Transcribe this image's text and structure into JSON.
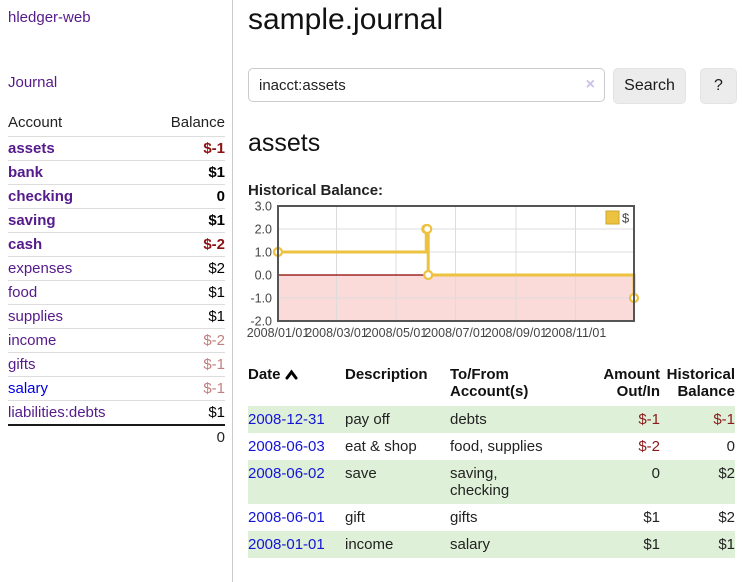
{
  "app": {
    "title": "hledger-web"
  },
  "sidebar": {
    "journal_link": "Journal",
    "table_headers": {
      "account": "Account",
      "balance": "Balance"
    },
    "accounts": [
      {
        "name": "assets",
        "indent": 1,
        "balance": "$-1",
        "bold": true,
        "neg": "strong"
      },
      {
        "name": "bank",
        "indent": 2,
        "balance": "$1",
        "bold": true
      },
      {
        "name": "checking",
        "indent": 3,
        "balance": "0",
        "bold": true
      },
      {
        "name": "saving",
        "indent": 3,
        "balance": "$1",
        "bold": true
      },
      {
        "name": "cash",
        "indent": 2,
        "balance": "$-2",
        "bold": true,
        "neg": "strong"
      },
      {
        "name": "expenses",
        "indent": 1,
        "balance": "$2"
      },
      {
        "name": "food",
        "indent": 2,
        "balance": "$1"
      },
      {
        "name": "supplies",
        "indent": 2,
        "balance": "$1"
      },
      {
        "name": "income",
        "indent": 1,
        "balance": "$-2",
        "neg": "soft"
      },
      {
        "name": "gifts",
        "indent": 2,
        "balance": "$-1",
        "neg": "soft"
      },
      {
        "name": "salary",
        "indent": 2,
        "balance": "$-1",
        "neg": "soft",
        "blue": true
      },
      {
        "name": "liabilities:debts",
        "indent": 1,
        "balance": "$1"
      }
    ],
    "total": "0"
  },
  "main": {
    "title": "sample.journal",
    "search": {
      "value": "inacct:assets",
      "clear_icon": "×",
      "button": "Search",
      "help_button": "?"
    },
    "account_heading": "assets",
    "chart_label": "Historical Balance:"
  },
  "chart_data": {
    "type": "line",
    "step": true,
    "title": "Historical Balance",
    "series": [
      {
        "name": "$",
        "color": "#edc240",
        "points": [
          [
            "2008-01-01",
            1
          ],
          [
            "2008-06-01",
            2
          ],
          [
            "2008-06-02",
            2
          ],
          [
            "2008-06-03",
            0
          ],
          [
            "2008-12-31",
            -1
          ]
        ]
      }
    ],
    "xlim": [
      "2008-01-01",
      "2008-12-31"
    ],
    "ylim": [
      -2,
      3
    ],
    "x_ticks": [
      "2008/01/01",
      "2008/03/01",
      "2008/05/01",
      "2008/07/01",
      "2008/09/01",
      "2008/11/01"
    ],
    "y_ticks": [
      "3.0",
      "2.0",
      "1.0",
      "0.0",
      "-1.0",
      "-2.0"
    ],
    "grid": true,
    "legend_position": "top-right",
    "negative_region_color": "#fbdada",
    "zero_line_color": "#8b0000",
    "grid_color": "#dcdcdc",
    "border_color": "#555555"
  },
  "register": {
    "headers": [
      {
        "label": "Date",
        "sorted": "asc"
      },
      {
        "label": "Description"
      },
      {
        "label": "To/From Account(s)"
      },
      {
        "label": "Amount Out/In",
        "align": "right"
      },
      {
        "label": "Historical Balance",
        "align": "right"
      }
    ],
    "rows": [
      {
        "date": "2008-12-31",
        "description": "pay off",
        "accounts": "debts",
        "amount": "$-1",
        "amount_neg": true,
        "balance": "$-1",
        "balance_neg": true,
        "shaded": true
      },
      {
        "date": "2008-06-03",
        "description": "eat & shop",
        "accounts": "food, supplies",
        "amount": "$-2",
        "amount_neg": true,
        "balance": "0",
        "shaded": false
      },
      {
        "date": "2008-06-02",
        "description": "save",
        "accounts": "saving,\nchecking",
        "amount": "0",
        "balance": "$2",
        "shaded": true
      },
      {
        "date": "2008-06-01",
        "description": "gift",
        "accounts": "gifts",
        "amount": "$1",
        "balance": "$2",
        "shaded": false
      },
      {
        "date": "2008-01-01",
        "description": "income",
        "accounts": "salary",
        "amount": "$1",
        "balance": "$1",
        "shaded": true
      }
    ]
  }
}
